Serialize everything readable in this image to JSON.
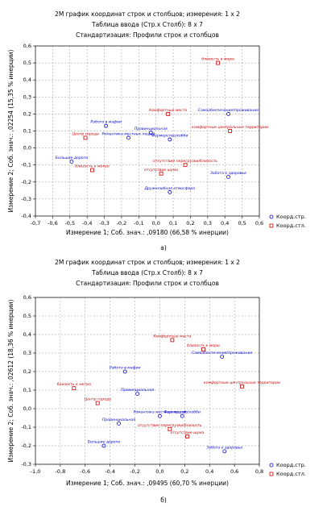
{
  "chart_data": [
    {
      "type": "scatter",
      "title": "2М график координат строк и столбцов; измерения:   1 x  2",
      "subtitle": "Таблица ввода (Стр.x Столб): 8 x 7",
      "note": "Стандартизация:  Профили строк и столбцов",
      "x_label": "Измерение 1; Соб. знач.: ,09180 (66,58 % инерции)",
      "y_label": "Измерение 2; Соб. знач.: ,02254 (15,35 % инерции)",
      "caption": "а)",
      "grid": true,
      "legend": "right-bottom",
      "xlim": [
        -0.7,
        0.6
      ],
      "xticks": [
        {
          "value": -0.7,
          "label": "-0,7"
        },
        {
          "value": -0.6,
          "label": "-0,6"
        },
        {
          "value": -0.5,
          "label": "-0,5"
        },
        {
          "value": -0.4,
          "label": "-0,4"
        },
        {
          "value": -0.3,
          "label": "-0,3"
        },
        {
          "value": -0.2,
          "label": "-0,2"
        },
        {
          "value": -0.1,
          "label": "-0,1"
        },
        {
          "value": 0,
          "label": "0,0"
        },
        {
          "value": 0.1,
          "label": "0,1"
        },
        {
          "value": 0.2,
          "label": "0,2"
        },
        {
          "value": 0.3,
          "label": "0,3"
        },
        {
          "value": 0.4,
          "label": "0,4"
        },
        {
          "value": 0.5,
          "label": "0,5"
        },
        {
          "value": 0.6,
          "label": "0,6"
        }
      ],
      "ylim": [
        -0.4,
        0.6
      ],
      "yticks": [
        {
          "value": -0.4,
          "label": "-0,4"
        },
        {
          "value": -0.3,
          "label": "-0,3"
        },
        {
          "value": -0.2,
          "label": "-0,2"
        },
        {
          "value": -0.1,
          "label": "-0,1"
        },
        {
          "value": 0,
          "label": "0,0"
        },
        {
          "value": 0.1,
          "label": "0,1"
        },
        {
          "value": 0.2,
          "label": "0,2"
        },
        {
          "value": 0.3,
          "label": "0,3"
        },
        {
          "value": 0.4,
          "label": "0,4"
        },
        {
          "value": 0.5,
          "label": "0,5"
        },
        {
          "value": 0.6,
          "label": "0,6"
        }
      ],
      "series": [
        {
          "name": "Коорд.стр.",
          "color": "#0000cc",
          "marker": "circle",
          "x": [
            0.42,
            -0.29,
            -0.16,
            0.08,
            -0.49,
            0.08,
            0.42,
            -0.03
          ],
          "values": [
            0.2,
            0.13,
            0.06,
            0.05,
            -0.08,
            -0.26,
            -0.17,
            0.09
          ],
          "labels": [
            "Самообеспечение/проживание",
            "Работа в мафии",
            "Романтика местных людей",
            "Фермерство/хобби",
            "Большие дороги",
            "Дружелюбная атмосфера",
            "Забота о здоровье",
            "Провинциальная"
          ]
        },
        {
          "name": "Коорд.стл.",
          "color": "#cc0000",
          "marker": "square",
          "x": [
            0.36,
            0.07,
            0.43,
            -0.41,
            -0.37,
            0.17,
            0.03
          ],
          "values": [
            0.5,
            0.2,
            0.1,
            0.06,
            -0.13,
            -0.1,
            -0.15
          ],
          "labels": [
            "близость к морю",
            "Комфортные места",
            "комфортные центральные территории",
            "Центр города",
            "близость к метро",
            "отсутствие перегрузки/близость",
            "отсутствие шума"
          ]
        }
      ]
    },
    {
      "type": "scatter",
      "title": "2М график координат строк и столбцов; измерения:   1 x  2",
      "subtitle": "Таблица ввода (Стр.x Столб): 8 x 7",
      "note": "Стандартизация:  Профили строк и столбцов",
      "x_label": "Измерение 1; Соб. знач.: ,09495 (60,70 % инерции)",
      "y_label": "Измерение 2; Соб. знач.: ,02612 (18,36 % инерции)",
      "caption": "б)",
      "grid": true,
      "legend": "right-bottom",
      "xlim": [
        -1.0,
        0.8
      ],
      "xticks": [
        {
          "value": -1.0,
          "label": "-1,0"
        },
        {
          "value": -0.8,
          "label": "-0,8"
        },
        {
          "value": -0.6,
          "label": "-0,6"
        },
        {
          "value": -0.4,
          "label": "-0,4"
        },
        {
          "value": -0.2,
          "label": "-0,2"
        },
        {
          "value": 0,
          "label": "0,0"
        },
        {
          "value": 0.2,
          "label": "0,2"
        },
        {
          "value": 0.4,
          "label": "0,4"
        },
        {
          "value": 0.6,
          "label": "0,6"
        },
        {
          "value": 0.8,
          "label": "0,8"
        }
      ],
      "ylim": [
        -0.3,
        0.6
      ],
      "yticks": [
        {
          "value": -0.3,
          "label": "-0,3"
        },
        {
          "value": -0.2,
          "label": "-0,2"
        },
        {
          "value": -0.1,
          "label": "-0,1"
        },
        {
          "value": 0,
          "label": "0,0"
        },
        {
          "value": 0.1,
          "label": "0,1"
        },
        {
          "value": 0.2,
          "label": "0,2"
        },
        {
          "value": 0.3,
          "label": "0,3"
        },
        {
          "value": 0.4,
          "label": "0,4"
        },
        {
          "value": 0.5,
          "label": "0,5"
        },
        {
          "value": 0.6,
          "label": "0,6"
        }
      ],
      "series": [
        {
          "name": "Коорд.стр.",
          "color": "#0000cc",
          "marker": "circle",
          "x": [
            0.5,
            -0.28,
            -0.18,
            0.0,
            0.18,
            -0.33,
            -0.45,
            0.52
          ],
          "values": [
            0.28,
            0.2,
            0.08,
            -0.04,
            -0.04,
            -0.08,
            -0.2,
            -0.23
          ],
          "labels": [
            "Самообеспечение/проживание",
            "Работа в мафии",
            "Провинциальная",
            "Романтика местных людей",
            "Фермерство/хобби",
            "Провинциальная",
            "Большие дороги",
            "Забота о здоровье"
          ]
        },
        {
          "name": "Коорд.стл.",
          "color": "#cc0000",
          "marker": "square",
          "x": [
            0.1,
            0.35,
            0.66,
            -0.69,
            -0.5,
            0.08,
            0.22
          ],
          "values": [
            0.37,
            0.32,
            0.12,
            0.11,
            0.03,
            -0.11,
            -0.15
          ],
          "labels": [
            "Комфортные места",
            "близость к морю",
            "комфортные центральные территории",
            "близость к метро",
            "Центр города",
            "отсутствие перегрузки/близость",
            "отсутствие шума"
          ]
        }
      ]
    }
  ]
}
